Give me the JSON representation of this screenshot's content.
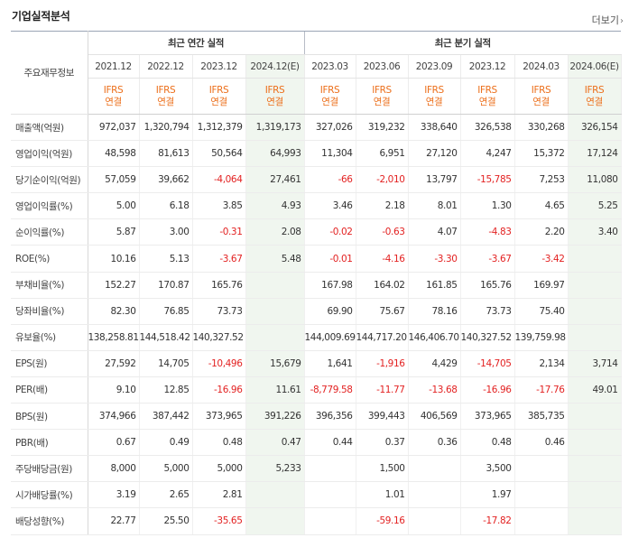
{
  "title": "기업실적분석",
  "more_label": "더보기",
  "row_header": "주요재무정보",
  "group_annual": "최근 연간 실적",
  "group_quarter": "최근 분기 실적",
  "periods": [
    "2021.12",
    "2022.12",
    "2023.12",
    "2024.12(E)",
    "2023.03",
    "2023.06",
    "2023.09",
    "2023.12",
    "2024.03",
    "2024.06(E)"
  ],
  "ifrs_line1": "IFRS",
  "ifrs_line2": "연결",
  "estimate_flags": [
    false,
    false,
    false,
    true,
    false,
    false,
    false,
    false,
    false,
    true
  ],
  "rows": [
    {
      "label": "매출액(억원)",
      "values": [
        "972,037",
        "1,320,794",
        "1,312,379",
        "1,319,173",
        "327,026",
        "319,232",
        "338,640",
        "326,538",
        "330,268",
        "326,154"
      ]
    },
    {
      "label": "영업이익(억원)",
      "values": [
        "48,598",
        "81,613",
        "50,564",
        "64,993",
        "11,304",
        "6,951",
        "27,120",
        "4,247",
        "15,372",
        "17,124"
      ]
    },
    {
      "label": "당기순이익(억원)",
      "values": [
        "57,059",
        "39,662",
        "-4,064",
        "27,461",
        "-66",
        "-2,010",
        "13,797",
        "-15,785",
        "7,253",
        "11,080"
      ]
    },
    {
      "label": "영업이익률(%)",
      "section": true,
      "values": [
        "5.00",
        "6.18",
        "3.85",
        "4.93",
        "3.46",
        "2.18",
        "8.01",
        "1.30",
        "4.65",
        "5.25"
      ]
    },
    {
      "label": "순이익률(%)",
      "values": [
        "5.87",
        "3.00",
        "-0.31",
        "2.08",
        "-0.02",
        "-0.63",
        "4.07",
        "-4.83",
        "2.20",
        "3.40"
      ]
    },
    {
      "label": "ROE(%)",
      "values": [
        "10.16",
        "5.13",
        "-3.67",
        "5.48",
        "-0.01",
        "-4.16",
        "-3.30",
        "-3.67",
        "-3.42",
        ""
      ]
    },
    {
      "label": "부채비율(%)",
      "section": true,
      "values": [
        "152.27",
        "170.87",
        "165.76",
        "",
        "167.98",
        "164.02",
        "161.85",
        "165.76",
        "169.97",
        ""
      ]
    },
    {
      "label": "당좌비율(%)",
      "values": [
        "82.30",
        "76.85",
        "73.73",
        "",
        "69.90",
        "75.67",
        "78.16",
        "73.73",
        "75.40",
        ""
      ]
    },
    {
      "label": "유보율(%)",
      "values": [
        "138,258.81",
        "144,518.42",
        "140,327.52",
        "",
        "144,009.69",
        "144,717.20",
        "146,406.70",
        "140,327.52",
        "139,759.98",
        ""
      ]
    },
    {
      "label": "EPS(원)",
      "section": true,
      "values": [
        "27,592",
        "14,705",
        "-10,496",
        "15,679",
        "1,641",
        "-1,916",
        "4,429",
        "-14,705",
        "2,134",
        "3,714"
      ]
    },
    {
      "label": "PER(배)",
      "values": [
        "9.10",
        "12.85",
        "-16.96",
        "11.61",
        "-8,779.58",
        "-11.77",
        "-13.68",
        "-16.96",
        "-17.76",
        "49.01"
      ]
    },
    {
      "label": "BPS(원)",
      "values": [
        "374,966",
        "387,442",
        "373,965",
        "391,226",
        "396,356",
        "399,443",
        "406,569",
        "373,965",
        "385,735",
        ""
      ]
    },
    {
      "label": "PBR(배)",
      "values": [
        "0.67",
        "0.49",
        "0.48",
        "0.47",
        "0.44",
        "0.37",
        "0.36",
        "0.48",
        "0.46",
        ""
      ]
    },
    {
      "label": "주당배당금(원)",
      "section": true,
      "values": [
        "8,000",
        "5,000",
        "5,000",
        "5,233",
        "",
        "1,500",
        "",
        "3,500",
        "",
        ""
      ]
    },
    {
      "label": "시가배당률(%)",
      "values": [
        "3.19",
        "2.65",
        "2.81",
        "",
        "",
        "1.01",
        "",
        "1.97",
        "",
        ""
      ]
    },
    {
      "label": "배당성향(%)",
      "values": [
        "22.77",
        "25.50",
        "-35.65",
        "",
        "",
        "-59.16",
        "",
        "-17.82",
        "",
        ""
      ]
    }
  ]
}
